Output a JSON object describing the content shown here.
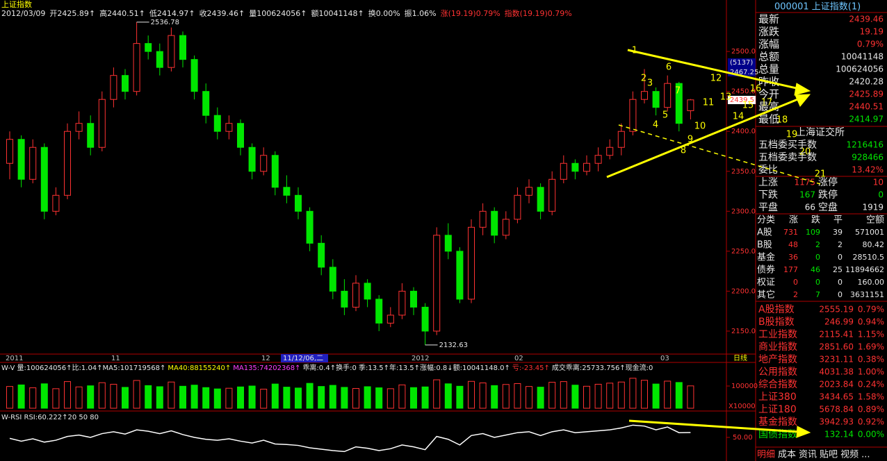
{
  "chart_data": [
    {
      "type": "candlestick",
      "title": "上证指数",
      "info": [
        "2012/03/09",
        "开2425.89↑",
        "高2440.51↑",
        "低2414.97↑",
        "收2439.46↑",
        "量100624056↑",
        "额10041148↑",
        "换0.00%",
        "振1.06%",
        "涨(19.19)0.79%",
        "指数(19.19)0.79%"
      ],
      "ohlc": [
        [
          2360,
          2400,
          2340,
          2390
        ],
        [
          2390,
          2395,
          2330,
          2340
        ],
        [
          2340,
          2390,
          2335,
          2380
        ],
        [
          2380,
          2385,
          2290,
          2300
        ],
        [
          2300,
          2330,
          2295,
          2320
        ],
        [
          2320,
          2410,
          2315,
          2400
        ],
        [
          2400,
          2425,
          2390,
          2410
        ],
        [
          2410,
          2420,
          2370,
          2380
        ],
        [
          2380,
          2450,
          2375,
          2440
        ],
        [
          2440,
          2480,
          2430,
          2470
        ],
        [
          2470,
          2478,
          2440,
          2450
        ],
        [
          2450,
          2536.78,
          2445,
          2510
        ],
        [
          2510,
          2520,
          2490,
          2500
        ],
        [
          2500,
          2510,
          2470,
          2480
        ],
        [
          2480,
          2530,
          2475,
          2520
        ],
        [
          2520,
          2525,
          2480,
          2490
        ],
        [
          2490,
          2495,
          2440,
          2450
        ],
        [
          2450,
          2460,
          2410,
          2420
        ],
        [
          2420,
          2430,
          2390,
          2400
        ],
        [
          2400,
          2420,
          2390,
          2410
        ],
        [
          2410,
          2415,
          2370,
          2380
        ],
        [
          2380,
          2385,
          2340,
          2350
        ],
        [
          2350,
          2380,
          2345,
          2370
        ],
        [
          2370,
          2375,
          2320,
          2330
        ],
        [
          2330,
          2345,
          2310,
          2320
        ],
        [
          2320,
          2330,
          2290,
          2300
        ],
        [
          2300,
          2305,
          2250,
          2260
        ],
        [
          2260,
          2270,
          2220,
          2230
        ],
        [
          2230,
          2240,
          2190,
          2200
        ],
        [
          2200,
          2215,
          2170,
          2180
        ],
        [
          2180,
          2220,
          2175,
          2210
        ],
        [
          2210,
          2215,
          2180,
          2190
        ],
        [
          2190,
          2195,
          2150,
          2160
        ],
        [
          2160,
          2180,
          2155,
          2170
        ],
        [
          2170,
          2210,
          2165,
          2200
        ],
        [
          2200,
          2205,
          2170,
          2180
        ],
        [
          2180,
          2185,
          2132.63,
          2150
        ],
        [
          2150,
          2280,
          2145,
          2270
        ],
        [
          2270,
          2285,
          2240,
          2250
        ],
        [
          2250,
          2255,
          2185,
          2190
        ],
        [
          2190,
          2290,
          2185,
          2280
        ],
        [
          2280,
          2310,
          2270,
          2300
        ],
        [
          2300,
          2305,
          2260,
          2270
        ],
        [
          2270,
          2300,
          2265,
          2290
        ],
        [
          2290,
          2330,
          2285,
          2320
        ],
        [
          2320,
          2340,
          2310,
          2330
        ],
        [
          2330,
          2335,
          2290,
          2300
        ],
        [
          2300,
          2350,
          2295,
          2340
        ],
        [
          2340,
          2370,
          2335,
          2360
        ],
        [
          2360,
          2365,
          2340,
          2350
        ],
        [
          2350,
          2370,
          2345,
          2360
        ],
        [
          2360,
          2380,
          2350,
          2370
        ],
        [
          2370,
          2390,
          2365,
          2380
        ],
        [
          2380,
          2410,
          2370,
          2400
        ],
        [
          2400,
          2450,
          2395,
          2440
        ],
        [
          2440,
          2478,
          2435,
          2450
        ],
        [
          2450,
          2455,
          2420,
          2430
        ],
        [
          2430,
          2470,
          2425,
          2460
        ],
        [
          2460,
          2462,
          2400,
          2410
        ],
        [
          2425.89,
          2440.51,
          2414.97,
          2439.46
        ]
      ],
      "up_color": "#ff3232",
      "down_color": "#00e600",
      "ylim": [
        2123,
        2554
      ],
      "yticks": [
        {
          "value": 2500,
          "label": "2500.0"
        },
        {
          "value": 2450,
          "label": "2450.0"
        },
        {
          "value": 2400,
          "label": "2400.0"
        },
        {
          "value": 2350,
          "label": "2350.0"
        },
        {
          "value": 2300,
          "label": "2300.0"
        },
        {
          "value": 2250,
          "label": "2250.0"
        },
        {
          "value": 2200,
          "label": "2200.0"
        },
        {
          "value": 2150,
          "label": "2150.0"
        }
      ],
      "price_tags": [
        "(5137)",
        "2467.25",
        "2439.5"
      ],
      "date_labels": [
        "2011",
        "11",
        "12",
        "11/12/06,二",
        "2012",
        "02",
        "03",
        "日线"
      ],
      "annotations": [
        "1",
        "2",
        "3",
        "4",
        "5",
        "6",
        "7",
        "8",
        "9",
        "10",
        "11",
        "12",
        "13",
        "14",
        "15",
        "16",
        "17",
        "18",
        "19",
        "20",
        "21"
      ]
    },
    {
      "type": "bar",
      "header": [
        "W-V 量:100624056↑比:1.04↑MA5:101719568↑",
        "MA40:88155240↑",
        "MA135:74202368↑",
        "乖离:0.4↑换手:0 季:13.5↑年:13.5↑涨幅:0.8↓额:10041148.0↑",
        "亏:-23.45↑",
        "成交乖离:25733.756↑现金流:0"
      ],
      "values": [
        98000,
        105000,
        92000,
        110000,
        88000,
        120000,
        96000,
        101000,
        115000,
        108000,
        94000,
        125000,
        102000,
        97000,
        118000,
        99000,
        104000,
        93000,
        87000,
        90000,
        96000,
        100000,
        86000,
        109000,
        95000,
        91000,
        112000,
        98000,
        103000,
        94000,
        89000,
        97000,
        92000,
        88000,
        105000,
        93000,
        96000,
        128000,
        110000,
        99000,
        121000,
        114000,
        102000,
        107000,
        111000,
        98000,
        95000,
        117000,
        120000,
        104000,
        99000,
        108000,
        113000,
        118000,
        135000,
        126000,
        109000,
        122000,
        116000,
        100624
      ],
      "ylim": [
        0,
        150000
      ],
      "yticks": [
        100000
      ],
      "unit_label": "X10000"
    },
    {
      "type": "line",
      "header": "W-RSI RSI:60.222↑20 50 80",
      "color": "#ffffff",
      "values": [
        48,
        42,
        47,
        40,
        44,
        52,
        55,
        50,
        58,
        62,
        57,
        66,
        63,
        58,
        64,
        56,
        50,
        46,
        44,
        47,
        42,
        38,
        44,
        36,
        35,
        33,
        28,
        25,
        22,
        20,
        30,
        27,
        22,
        26,
        34,
        30,
        24,
        52,
        46,
        34,
        54,
        58,
        50,
        55,
        60,
        62,
        54,
        62,
        66,
        60,
        62,
        64,
        66,
        70,
        76,
        74,
        66,
        72,
        60,
        60.222
      ],
      "ylim": [
        0,
        100
      ],
      "yticks": [
        {
          "value": 50,
          "label": "50.00"
        }
      ]
    }
  ],
  "panel": {
    "title": "000001 上证指数(1)",
    "quote": [
      [
        "最新",
        "2439.46"
      ],
      [
        "涨跌",
        "19.19"
      ],
      [
        "涨幅",
        "0.79%"
      ],
      [
        "总额",
        "10041148"
      ],
      [
        "总量",
        "100624056"
      ],
      [
        "昨收",
        "2420.28"
      ],
      [
        "今开",
        "2425.89"
      ],
      [
        "最高",
        "2440.51"
      ],
      [
        "最低",
        "2414.97"
      ]
    ],
    "exchange": "上海证交所",
    "orders": [
      [
        "五档委买手数",
        "1216416"
      ],
      [
        "五档委卖手数",
        "928466"
      ],
      [
        "委比",
        "13.42%"
      ]
    ],
    "breadth": [
      [
        "上涨",
        "1175",
        "涨停",
        "10"
      ],
      [
        "下跌",
        "167",
        "跌停",
        "0"
      ],
      [
        "平盘",
        "66",
        "空盘",
        "1919"
      ]
    ],
    "table": [
      [
        "分类",
        "涨",
        "跌",
        "平",
        "空额"
      ],
      [
        "A股",
        "731",
        "109",
        "39",
        "571001"
      ],
      [
        "B股",
        "48",
        "2",
        "2",
        "80.42"
      ],
      [
        "基金",
        "36",
        "0",
        "0",
        "28510.5"
      ],
      [
        "债券",
        "177",
        "46",
        "25",
        "11894662"
      ],
      [
        "权证",
        "0",
        "0",
        "0",
        "160.00"
      ],
      [
        "其它",
        "2",
        "7",
        "0",
        "3631151"
      ]
    ],
    "indices": [
      [
        "A股指数",
        "2555.19",
        "0.79%"
      ],
      [
        "B股指数",
        "246.99",
        "0.94%"
      ],
      [
        "工业指数",
        "2115.41",
        "1.15%"
      ],
      [
        "商业指数",
        "2851.60",
        "1.69%"
      ],
      [
        "地产指数",
        "3231.11",
        "0.38%"
      ],
      [
        "公用指数",
        "4031.38",
        "1.00%"
      ],
      [
        "综合指数",
        "2023.84",
        "0.24%"
      ],
      [
        "上证380",
        "3434.65",
        "1.58%"
      ],
      [
        "上证180",
        "5678.84",
        "0.89%"
      ],
      [
        "基金指数",
        "3942.93",
        "0.92%"
      ],
      [
        "国债指数",
        "132.14",
        "0.00%"
      ]
    ],
    "tabs": [
      "明细",
      "成本",
      "资讯",
      "贴吧",
      "视频",
      "..."
    ]
  }
}
